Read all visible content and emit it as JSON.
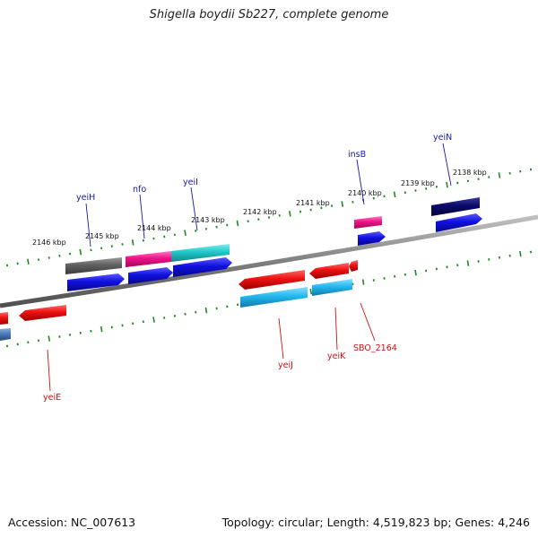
{
  "title": "Shigella boydii Sb227, complete genome",
  "footer": {
    "accession": "Accession: NC_007613",
    "topology": "Topology: circular; Length: 4,519,823 bp; Genes: 4,246"
  },
  "kbp_labels": [
    "2146 kbp",
    "2145 kbp",
    "2144 kbp",
    "2143 kbp",
    "2142 kbp",
    "2141 kbp",
    "2140 kbp",
    "2139 kbp",
    "2138 kbp"
  ],
  "gene_labels_forward": [
    "yeiH",
    "nfo",
    "yeiI",
    "insB",
    "yeiN"
  ],
  "gene_labels_reverse": [
    "yeiE",
    "yeiJ",
    "yeiK",
    "SBO_2164"
  ],
  "colors": {
    "forward_label": "#1a1aa8",
    "reverse_label": "#cc1111",
    "backbone": "#808080",
    "tick": "#228822",
    "blue": "#1010e0",
    "red": "#ee1111",
    "magenta": "#ee1188",
    "cyan": "#22c8c8",
    "grey": "#606060",
    "navy": "#0a0a6a",
    "sky": "#22b8ee",
    "steel": "#4a7ab8"
  }
}
